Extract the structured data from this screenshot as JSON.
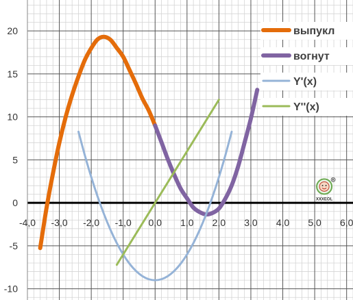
{
  "chart_data": {
    "type": "line",
    "title": "",
    "xlabel": "",
    "ylabel": "",
    "xlim": [
      -4.0,
      6.2
    ],
    "ylim": [
      -11.3,
      23.6
    ],
    "grid": true,
    "minor_grid": true,
    "legend_position": "right",
    "x_ticks": [
      -4.0,
      -3.0,
      -2.0,
      -1.0,
      0.0,
      1.0,
      2.0,
      3.0,
      4.0,
      5.0,
      6.0
    ],
    "x_tick_labels": [
      "-4,0",
      "-3,0",
      "-2,0",
      "-1,0",
      "0,0",
      "1,0",
      "2,0",
      "3,0",
      "4,0",
      "5,0",
      "6,0"
    ],
    "y_ticks": [
      -10,
      -5,
      0,
      5,
      10,
      15,
      20
    ],
    "y_tick_labels": [
      "-10",
      "-5",
      "0",
      "5",
      "10",
      "15",
      "20"
    ],
    "series": [
      {
        "name": "выпукл",
        "color": "#E46C0A",
        "x": [
          -3.6,
          -3.4,
          -3.2,
          -3.0,
          -2.8,
          -2.6,
          -2.4,
          -2.2,
          -2.0,
          -1.8,
          -1.6,
          -1.4,
          -1.2,
          -1.0,
          -0.8,
          -0.6,
          -0.4,
          -0.2,
          0.0
        ],
        "y": [
          -5.26,
          -0.56,
          3.42,
          6.99,
          10.01,
          12.54,
          14.71,
          16.63,
          18.0,
          19.03,
          19.32,
          18.98,
          18.02,
          17.0,
          15.45,
          13.86,
          12.16,
          10.76,
          9.0
        ]
      },
      {
        "name": "вогнут",
        "color": "#8064A2",
        "x": [
          0.0,
          0.2,
          0.4,
          0.6,
          0.8,
          1.0,
          1.2,
          1.4,
          1.6,
          1.8,
          2.0,
          2.2,
          2.4,
          2.6,
          2.8,
          3.0,
          3.2
        ],
        "y": [
          9.0,
          7.05,
          5.06,
          3.27,
          1.66,
          0.53,
          -0.55,
          -1.08,
          -1.35,
          -1.17,
          -0.66,
          0.49,
          2.04,
          4.22,
          6.97,
          9.81,
          13.15
        ]
      },
      {
        "name": "Y'(x)",
        "color": "#95B3D7",
        "x": [
          -2.4,
          -2.2,
          -2.0,
          -1.8,
          -1.6,
          -1.4,
          -1.2,
          -1.0,
          -0.8,
          -0.6,
          -0.4,
          -0.2,
          0.0,
          0.2,
          0.4,
          0.6,
          0.8,
          1.0,
          1.2,
          1.4,
          1.6,
          1.8,
          2.0,
          2.2,
          2.4
        ],
        "y": [
          8.28,
          5.52,
          3.0,
          0.72,
          -1.32,
          -3.12,
          -4.68,
          -6.0,
          -7.08,
          -7.92,
          -8.52,
          -8.88,
          -9.0,
          -8.88,
          -8.52,
          -7.92,
          -7.08,
          -6.0,
          -4.68,
          -3.12,
          -1.32,
          0.72,
          3.0,
          5.52,
          8.28
        ]
      },
      {
        "name": "Y''(x)",
        "color": "#9BBB59",
        "x": [
          -1.2,
          2.0
        ],
        "y": [
          -7.2,
          12.0
        ]
      }
    ],
    "logo": {
      "name": "logo-badge",
      "text": "XXXEOL",
      "registered": "®",
      "x": 5.3,
      "y": 1.9
    }
  }
}
